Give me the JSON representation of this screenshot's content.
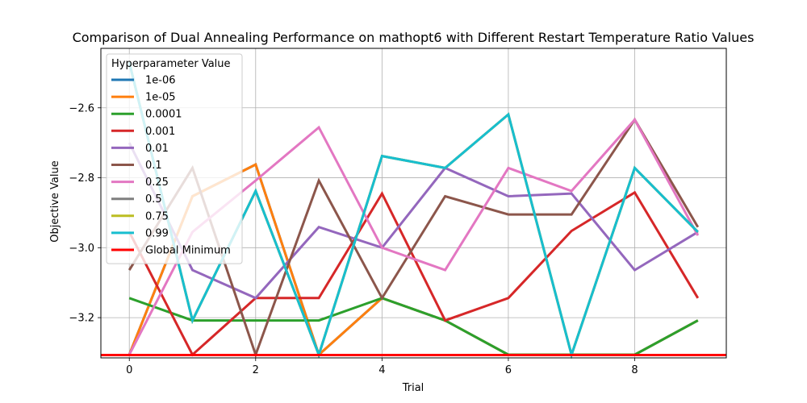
{
  "chart_data": {
    "type": "line",
    "title": "Comparison of Dual Annealing Performance on mathopt6 with Different Restart Temperature Ratio Values",
    "xlabel": "Trial",
    "ylabel": "Objective Value",
    "xlim": [
      -0.45,
      9.45
    ],
    "ylim": [
      -3.315,
      -2.43
    ],
    "xticks": [
      0,
      2,
      4,
      6,
      8
    ],
    "yticks": [
      -3.2,
      -3.0,
      -2.8,
      -2.6
    ],
    "xtick_labels": [
      "0",
      "2",
      "4",
      "6",
      "8"
    ],
    "ytick_labels": [
      "−3.2",
      "−3.0",
      "−2.8",
      "−2.6"
    ],
    "grid": true,
    "legend": {
      "title": "Hyperparameter Value",
      "placement": "top-left"
    },
    "x": [
      0,
      1,
      2,
      3,
      4,
      5,
      6,
      7,
      8,
      9
    ],
    "series": [
      {
        "name": "1e-06",
        "color": "#1f77b4",
        "values": [
          -3.306,
          -2.853,
          -2.762,
          -3.306,
          -3.144,
          -3.208,
          -3.306,
          -3.306,
          -3.306,
          -3.208
        ]
      },
      {
        "name": "1e-05",
        "color": "#ff7f0e",
        "values": [
          -3.306,
          -2.853,
          -2.762,
          -3.306,
          -3.144,
          -3.208,
          -3.306,
          -3.306,
          -3.306,
          -3.208
        ]
      },
      {
        "name": "0.0001",
        "color": "#2ca02c",
        "values": [
          -3.144,
          -3.208,
          -3.208,
          -3.208,
          -3.144,
          -3.208,
          -3.306,
          -3.306,
          -3.306,
          -3.208
        ]
      },
      {
        "name": "0.001",
        "color": "#d62728",
        "values": [
          -2.955,
          -3.306,
          -3.144,
          -3.144,
          -2.845,
          -3.208,
          -3.144,
          -2.952,
          -2.842,
          -3.144
        ]
      },
      {
        "name": "0.01",
        "color": "#9467bd",
        "values": [
          -2.7,
          -3.064,
          -3.144,
          -2.941,
          -3.0,
          -2.772,
          -2.853,
          -2.845,
          -3.064,
          -2.955
        ]
      },
      {
        "name": "0.1",
        "color": "#8c564b",
        "values": [
          -3.064,
          -2.772,
          -3.306,
          -2.808,
          -3.144,
          -2.853,
          -2.905,
          -2.905,
          -2.634,
          -2.941
        ]
      },
      {
        "name": "0.25",
        "color": "#e377c2",
        "values": [
          -3.306,
          -2.955,
          -2.808,
          -2.656,
          -3.0,
          -3.064,
          -2.772,
          -2.838,
          -2.634,
          -2.965
        ]
      },
      {
        "name": "0.5",
        "color": "#7f7f7f",
        "values": [
          -2.47,
          -3.208,
          -2.838,
          -3.306,
          -2.738,
          -2.772,
          -2.619,
          -3.306,
          -2.772,
          -2.955
        ]
      },
      {
        "name": "0.75",
        "color": "#bcbd22",
        "values": [
          -2.47,
          -3.208,
          -2.838,
          -3.306,
          -2.738,
          -2.772,
          -2.619,
          -3.306,
          -2.772,
          -2.955
        ]
      },
      {
        "name": "0.99",
        "color": "#17becf",
        "values": [
          -2.47,
          -3.208,
          -2.838,
          -3.306,
          -2.738,
          -2.772,
          -2.619,
          -3.306,
          -2.772,
          -2.955
        ]
      }
    ],
    "reference_line": {
      "name": "Global Minimum",
      "color": "#ff0000",
      "y": -3.3069
    }
  }
}
